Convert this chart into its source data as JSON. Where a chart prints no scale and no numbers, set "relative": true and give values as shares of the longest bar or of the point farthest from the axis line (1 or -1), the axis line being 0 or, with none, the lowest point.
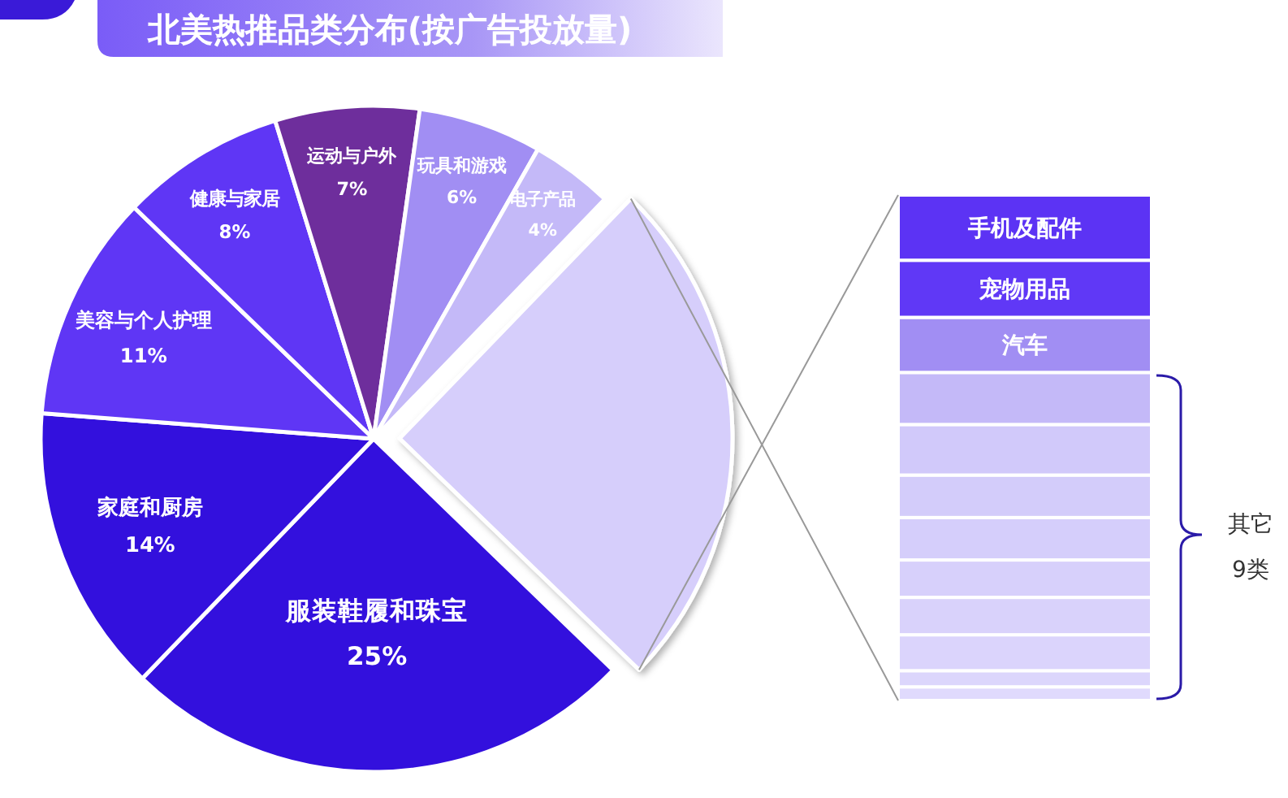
{
  "chart_data": [
    {
      "type": "pie",
      "title": "北美热推品类分布(按广告投放量)",
      "categories": [
        "服装鞋履和珠宝",
        "家庭和厨房",
        "美容与个人护理",
        "健康与家居",
        "运动与户外",
        "玩具和游戏",
        "电子产品",
        null
      ],
      "values": [
        25,
        14,
        11,
        8,
        7,
        6,
        4,
        25
      ],
      "value_labels": [
        "25%",
        "14%",
        "11%",
        "8%",
        "7%",
        "6%",
        "4%",
        null
      ],
      "colors": [
        "#3310dd",
        "#3310dd",
        "#5f36f5",
        "#5f36f5",
        "#6e2e9c",
        "#a18ef3",
        "#c4b9f8",
        "#d6cefb"
      ]
    },
    {
      "type": "bar",
      "stacked": true,
      "relative": true,
      "categories": [
        null
      ],
      "series": [
        {
          "color": "#e0dafd",
          "values": [
            0.027
          ]
        },
        {
          "color": "#dcd6fc",
          "values": [
            0.032
          ]
        },
        {
          "color": "#dbd4fc",
          "values": [
            0.071
          ]
        },
        {
          "color": "#d9d2fb",
          "values": [
            0.074
          ]
        },
        {
          "color": "#d7d0fb",
          "values": [
            0.074
          ]
        },
        {
          "color": "#d5cefb",
          "values": [
            0.084
          ]
        },
        {
          "color": "#d3ccfa",
          "values": [
            0.084
          ]
        },
        {
          "color": "#d1c9fa",
          "values": [
            0.1
          ]
        },
        {
          "color": "#c4b9f8",
          "values": [
            0.103
          ]
        },
        {
          "name": "汽车",
          "color": "#a18ef3",
          "values": [
            0.109
          ]
        },
        {
          "name": "宠物用品",
          "color": "#6038f6",
          "values": [
            0.113
          ]
        },
        {
          "name": "手机及配件",
          "color": "#5c33f4",
          "values": [
            0.129
          ]
        }
      ],
      "annotations": [
        "其它\n9类"
      ]
    }
  ]
}
